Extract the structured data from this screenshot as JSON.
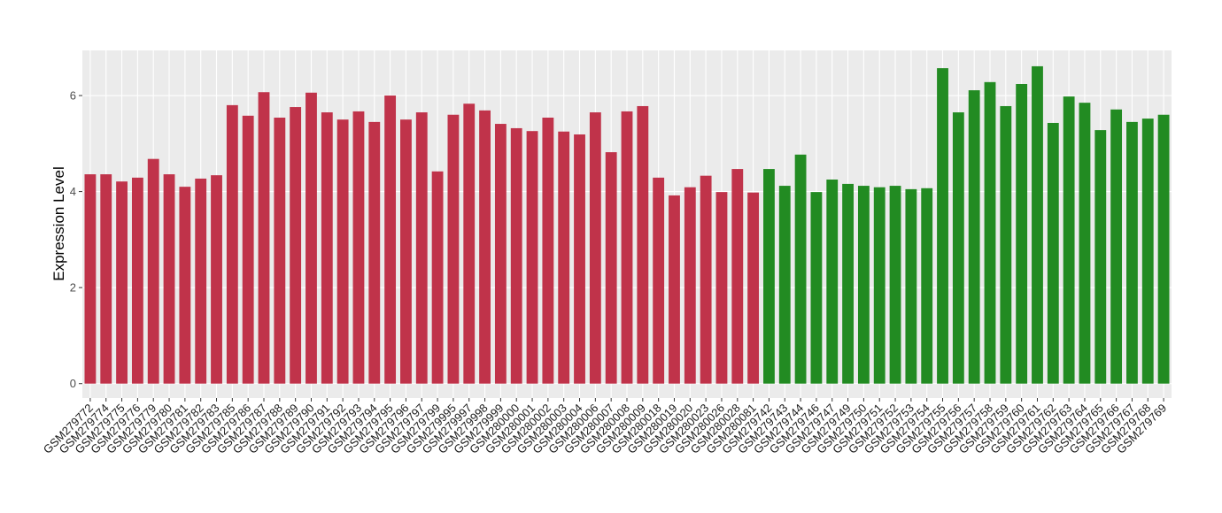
{
  "chart_data": {
    "type": "bar",
    "y_label": "Expression Level",
    "ylim": [
      -0.3,
      6.94
    ],
    "yticks": [
      0,
      2,
      4,
      6
    ],
    "grid": true,
    "groups": [
      {
        "color": "#c0334a",
        "categories": [
          "GSM279772",
          "GSM279774",
          "GSM279775",
          "GSM279776",
          "GSM279779",
          "GSM279780",
          "GSM279781",
          "GSM279782",
          "GSM279783",
          "GSM279785",
          "GSM279786",
          "GSM279787",
          "GSM279788",
          "GSM279789",
          "GSM279790",
          "GSM279791",
          "GSM279792",
          "GSM279793",
          "GSM279794",
          "GSM279795",
          "GSM279796",
          "GSM279797",
          "GSM279799",
          "GSM279995",
          "GSM279997",
          "GSM279998",
          "GSM279999",
          "GSM280000",
          "GSM280001",
          "GSM280002",
          "GSM280003",
          "GSM280004",
          "GSM280006",
          "GSM280007",
          "GSM280008",
          "GSM280009",
          "GSM280018",
          "GSM280019",
          "GSM280020",
          "GSM280023",
          "GSM280026",
          "GSM280028",
          "GSM280081"
        ],
        "values": [
          4.36,
          4.36,
          4.21,
          4.29,
          4.68,
          4.36,
          4.1,
          4.27,
          4.34,
          5.8,
          5.58,
          6.07,
          5.54,
          5.76,
          6.06,
          5.65,
          5.5,
          5.67,
          5.45,
          6.0,
          5.5,
          5.65,
          4.42,
          5.6,
          5.83,
          5.69,
          5.41,
          5.32,
          5.26,
          5.54,
          5.25,
          5.19,
          5.65,
          4.82,
          5.67,
          5.78,
          4.29,
          3.92,
          4.09,
          4.33,
          3.99,
          4.47,
          3.98
        ]
      },
      {
        "color": "#228b22",
        "categories": [
          "GSM279742",
          "GSM279743",
          "GSM279744",
          "GSM279746",
          "GSM279747",
          "GSM279749",
          "GSM279750",
          "GSM279751",
          "GSM279752",
          "GSM279753",
          "GSM279754",
          "GSM279755",
          "GSM279756",
          "GSM279757",
          "GSM279758",
          "GSM279759",
          "GSM279760",
          "GSM279761",
          "GSM279762",
          "GSM279763",
          "GSM279764",
          "GSM279765",
          "GSM279766",
          "GSM279767",
          "GSM279768",
          "GSM279769"
        ],
        "values": [
          4.47,
          4.12,
          4.77,
          3.99,
          4.25,
          4.16,
          4.12,
          4.09,
          4.12,
          4.05,
          4.07,
          6.57,
          5.65,
          6.11,
          6.28,
          5.78,
          6.24,
          6.61,
          5.43,
          5.98,
          5.85,
          5.28,
          5.71,
          5.45,
          5.52,
          5.6
        ]
      }
    ]
  }
}
